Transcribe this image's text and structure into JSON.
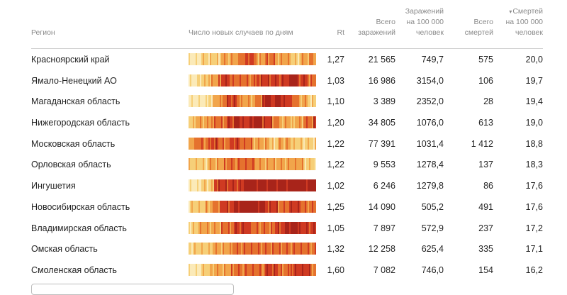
{
  "header": {
    "region": "Регион",
    "spark": "Число новых случаев по дням",
    "rt": "Rt",
    "total": "Всего\nзаражений",
    "per100": "Заражений\nна 100 000\nчеловек",
    "deaths": "Всего\nсмертей",
    "sort_arrow": "▾",
    "dper100": "Смертей\nна 100 000\nчеловек"
  },
  "colors": {
    "light": "#fbeab8",
    "yellow": "#f6cf78",
    "orange": "#f1a54b",
    "dark_orange": "#e5722e",
    "red": "#cf3a22",
    "dark_red": "#a8241a"
  },
  "rows": [
    {
      "region": "Красноярский край",
      "rt": "1,27",
      "total": "21 565",
      "per100": "749,7",
      "deaths": "575",
      "dper100": "20,0"
    },
    {
      "region": "Ямало-Ненецкий АО",
      "rt": "1,03",
      "total": "16 986",
      "per100": "3154,0",
      "deaths": "106",
      "dper100": "19,7"
    },
    {
      "region": "Магаданская область",
      "rt": "1,10",
      "total": "3 389",
      "per100": "2352,0",
      "deaths": "28",
      "dper100": "19,4"
    },
    {
      "region": "Нижегородская область",
      "rt": "1,20",
      "total": "34 805",
      "per100": "1076,0",
      "deaths": "613",
      "dper100": "19,0"
    },
    {
      "region": "Московская область",
      "rt": "1,22",
      "total": "77 391",
      "per100": "1031,4",
      "deaths": "1 412",
      "dper100": "18,8"
    },
    {
      "region": "Орловская область",
      "rt": "1,22",
      "total": "9 553",
      "per100": "1278,4",
      "deaths": "137",
      "dper100": "18,3"
    },
    {
      "region": "Ингушетия",
      "rt": "1,02",
      "total": "6 246",
      "per100": "1279,8",
      "deaths": "86",
      "dper100": "17,6"
    },
    {
      "region": "Новосибирская область",
      "rt": "1,25",
      "total": "14 090",
      "per100": "505,2",
      "deaths": "491",
      "dper100": "17,6"
    },
    {
      "region": "Владимирская область",
      "rt": "1,05",
      "total": "7 897",
      "per100": "572,9",
      "deaths": "237",
      "dper100": "17,2"
    },
    {
      "region": "Омская область",
      "rt": "1,32",
      "total": "12 258",
      "per100": "625,4",
      "deaths": "335",
      "dper100": "17,1"
    },
    {
      "region": "Смоленская область",
      "rt": "1,60",
      "total": "7 082",
      "per100": "746,0",
      "deaths": "154",
      "dper100": "16,2"
    }
  ]
}
